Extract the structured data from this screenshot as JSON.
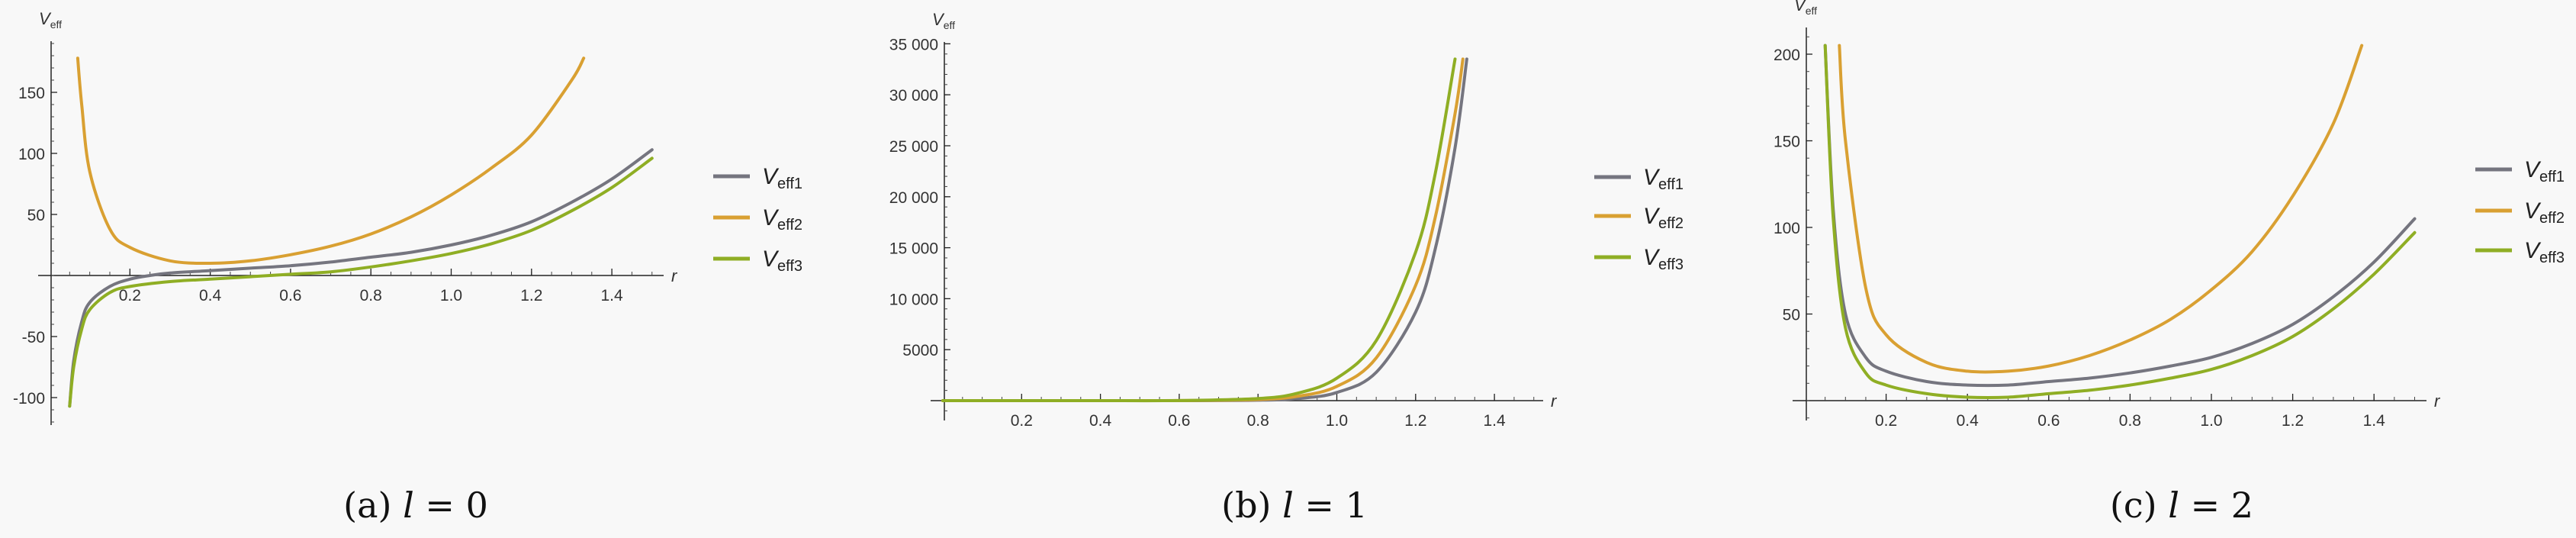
{
  "colors": {
    "Veff1": "#75757f",
    "Veff2": "#d9a032",
    "Veff3": "#8fae24"
  },
  "chart_data": [
    {
      "type": "line",
      "caption": {
        "prefix": "(a) ",
        "var": "l",
        "rest": " = 0"
      },
      "xlabel": "r",
      "ylabel": {
        "main": "V",
        "sub": "eff"
      },
      "xlim": [
        0,
        1.53
      ],
      "ylim": [
        -122,
        190
      ],
      "xticks": [
        0.2,
        0.4,
        0.6,
        0.8,
        1.0,
        1.2,
        1.4
      ],
      "xtick_labels": [
        "0.2",
        "0.4",
        "0.6",
        "0.8",
        "1.0",
        "1.2",
        "1.4"
      ],
      "yticks": [
        -100,
        -50,
        50,
        100,
        150
      ],
      "ytick_labels": [
        "-100",
        "-50",
        "50",
        "100",
        "150"
      ],
      "grid": false,
      "legend": "right",
      "series": [
        {
          "name": "Veff1",
          "label_main": "V",
          "label_sub": "eff1",
          "x": [
            0.05,
            0.06,
            0.08,
            0.1,
            0.15,
            0.2,
            0.25,
            0.3,
            0.4,
            0.5,
            0.6,
            0.7,
            0.8,
            0.9,
            1.0,
            1.1,
            1.2,
            1.3,
            1.4,
            1.5
          ],
          "y": [
            -107,
            -70,
            -38,
            -22,
            -9,
            -3,
            0,
            2,
            4,
            6,
            8,
            11,
            15,
            19,
            25,
            33,
            44,
            60,
            79,
            103
          ]
        },
        {
          "name": "Veff2",
          "label_main": "V",
          "label_sub": "eff2",
          "x": [
            0.07,
            0.08,
            0.1,
            0.15,
            0.2,
            0.3,
            0.4,
            0.5,
            0.6,
            0.7,
            0.8,
            0.9,
            1.0,
            1.1,
            1.2,
            1.3,
            1.33
          ],
          "y": [
            178,
            140,
            85,
            38,
            23,
            12,
            10,
            12,
            17,
            24,
            34,
            48,
            66,
            88,
            115,
            160,
            178
          ]
        },
        {
          "name": "Veff3",
          "label_main": "V",
          "label_sub": "eff3",
          "x": [
            0.05,
            0.06,
            0.08,
            0.1,
            0.15,
            0.2,
            0.3,
            0.4,
            0.5,
            0.6,
            0.7,
            0.8,
            0.9,
            1.0,
            1.1,
            1.2,
            1.3,
            1.4,
            1.5
          ],
          "y": [
            -107,
            -75,
            -44,
            -28,
            -14,
            -9,
            -5,
            -3,
            -1,
            1,
            3,
            7,
            12,
            18,
            26,
            37,
            53,
            72,
            96
          ]
        }
      ]
    },
    {
      "type": "line",
      "caption": {
        "prefix": "(b) ",
        "var": "l",
        "rest": " = 1"
      },
      "xlabel": "r",
      "ylabel": {
        "main": "V",
        "sub": "eff"
      },
      "xlim": [
        0,
        1.52
      ],
      "ylim": [
        -1900,
        35500
      ],
      "xticks": [
        0.2,
        0.4,
        0.6,
        0.8,
        1.0,
        1.2,
        1.4
      ],
      "xtick_labels": [
        "0.2",
        "0.4",
        "0.6",
        "0.8",
        "1.0",
        "1.2",
        "1.4"
      ],
      "yticks": [
        5000,
        10000,
        15000,
        20000,
        25000,
        30000,
        35000
      ],
      "ytick_labels": [
        "5000",
        "10 000",
        "15 000",
        "20 000",
        "25 000",
        "30 000",
        "35 000"
      ],
      "grid": false,
      "legend": "right",
      "series": [
        {
          "name": "Veff1",
          "label_main": "V",
          "label_sub": "eff1",
          "x": [
            0.0,
            0.2,
            0.4,
            0.6,
            0.8,
            0.9,
            1.0,
            1.1,
            1.2,
            1.25,
            1.3,
            1.33
          ],
          "y": [
            0,
            0,
            0,
            3,
            43,
            202,
            800,
            2780,
            8680,
            14900,
            24800,
            33500
          ]
        },
        {
          "name": "Veff2",
          "label_main": "V",
          "label_sub": "eff2",
          "x": [
            0.0,
            0.2,
            0.4,
            0.6,
            0.8,
            0.9,
            1.0,
            1.1,
            1.2,
            1.25,
            1.3,
            1.32
          ],
          "y": [
            0,
            0,
            1,
            6,
            111,
            424,
            1400,
            4190,
            11300,
            18000,
            28150,
            33500
          ]
        },
        {
          "name": "Veff3",
          "label_main": "V",
          "label_sub": "eff3",
          "x": [
            0.0,
            0.2,
            0.4,
            0.6,
            0.8,
            0.9,
            1.0,
            1.1,
            1.2,
            1.25,
            1.3
          ],
          "y": [
            0,
            0,
            1,
            11,
            213,
            727,
            2200,
            5890,
            14560,
            22300,
            33500
          ]
        }
      ]
    },
    {
      "type": "line",
      "caption": {
        "prefix": "(c) ",
        "var": "l",
        "rest": " = 2"
      },
      "xlabel": "r",
      "ylabel": {
        "main": "V",
        "sub": "eff"
      },
      "xlim": [
        0,
        1.53
      ],
      "ylim": [
        -11,
        215
      ],
      "xticks": [
        0.2,
        0.4,
        0.6,
        0.8,
        1.0,
        1.2,
        1.4
      ],
      "xtick_labels": [
        "0.2",
        "0.4",
        "0.6",
        "0.8",
        "1.0",
        "1.2",
        "1.4"
      ],
      "yticks": [
        50,
        100,
        150,
        200
      ],
      "ytick_labels": [
        "50",
        "100",
        "150",
        "200"
      ],
      "grid": false,
      "legend": "right",
      "series": [
        {
          "name": "Veff1",
          "label_main": "V",
          "label_sub": "eff1",
          "x": [
            0.05,
            0.07,
            0.1,
            0.15,
            0.2,
            0.3,
            0.4,
            0.5,
            0.6,
            0.7,
            0.8,
            0.9,
            1.0,
            1.1,
            1.2,
            1.3,
            1.4,
            1.5
          ],
          "y": [
            205,
            110,
            50,
            25,
            17,
            11,
            9,
            9,
            11,
            13,
            16,
            20,
            25,
            33,
            44,
            60,
            80,
            105
          ]
        },
        {
          "name": "Veff2",
          "label_main": "V",
          "label_sub": "eff2",
          "x": [
            0.085,
            0.1,
            0.15,
            0.2,
            0.3,
            0.4,
            0.5,
            0.6,
            0.7,
            0.8,
            0.9,
            1.0,
            1.1,
            1.2,
            1.3,
            1.37
          ],
          "y": [
            205,
            150,
            65,
            38,
            22,
            17,
            17,
            20,
            26,
            35,
            47,
            64,
            86,
            118,
            160,
            205
          ]
        },
        {
          "name": "Veff3",
          "label_main": "V",
          "label_sub": "eff3",
          "x": [
            0.05,
            0.07,
            0.1,
            0.15,
            0.2,
            0.3,
            0.4,
            0.5,
            0.6,
            0.7,
            0.8,
            0.9,
            1.0,
            1.1,
            1.2,
            1.3,
            1.4,
            1.5
          ],
          "y": [
            205,
            105,
            42,
            16,
            9,
            4,
            2,
            2,
            4,
            6,
            9,
            13,
            18,
            26,
            37,
            53,
            73,
            97
          ]
        }
      ]
    }
  ]
}
